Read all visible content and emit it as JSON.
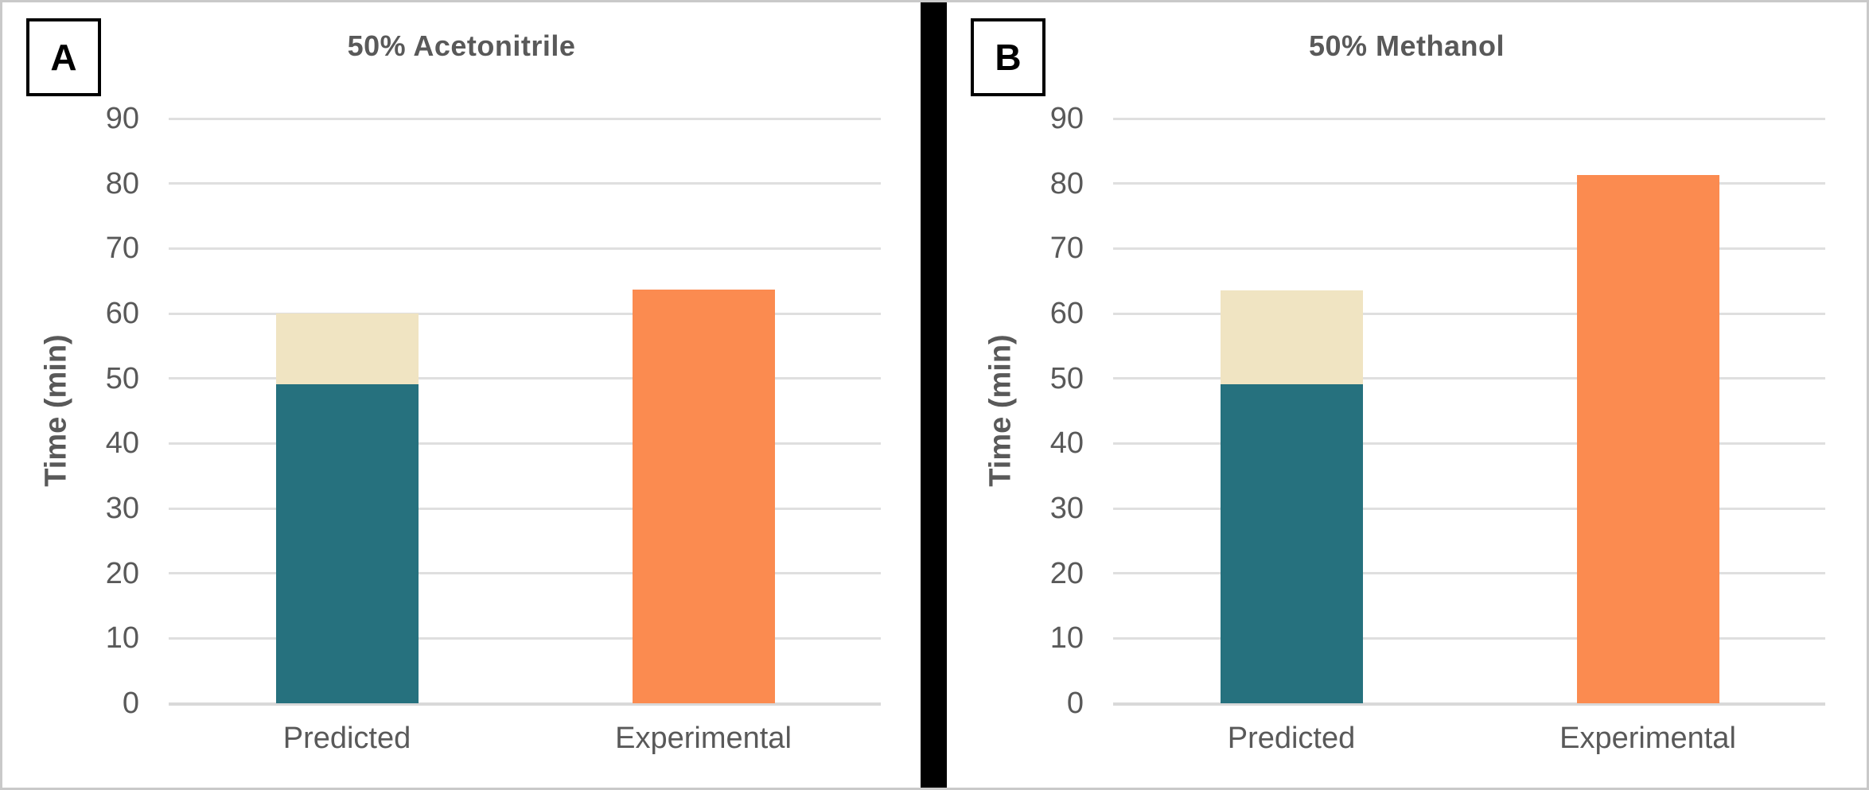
{
  "figure": {
    "background": "#FFFFFF",
    "border_color": "#C9C9C9",
    "divider_color": "#000000",
    "text_color": "#595959",
    "gridline_color": "#DFDFDF",
    "baseline_color": "#D9D9D9",
    "panel_label_color": "#000000"
  },
  "chart_data": [
    {
      "type": "bar",
      "panel_label": "A",
      "title": "50% Acetonitrile",
      "ylabel": "Time (min)",
      "xlabel": "",
      "ylim": [
        0,
        90
      ],
      "yticks": [
        0,
        10,
        20,
        30,
        40,
        50,
        60,
        70,
        80,
        90
      ],
      "grid": true,
      "legend": "none",
      "categories": [
        "Predicted",
        "Experimental"
      ],
      "bars": [
        {
          "category": "Predicted",
          "total": 60.0,
          "stacked_segments": [
            {
              "name": "predicted-lower-segment",
              "value": 49.1,
              "color": "#26717E"
            },
            {
              "name": "predicted-upper-segment",
              "value": 10.9,
              "color": "#F0E4C2"
            }
          ]
        },
        {
          "category": "Experimental",
          "total": 63.7,
          "stacked_segments": [
            {
              "name": "experimental-segment",
              "value": 63.7,
              "color": "#FB8B50"
            }
          ]
        }
      ]
    },
    {
      "type": "bar",
      "panel_label": "B",
      "title": "50% Methanol",
      "ylabel": "Time (min)",
      "xlabel": "",
      "ylim": [
        0,
        90
      ],
      "yticks": [
        0,
        10,
        20,
        30,
        40,
        50,
        60,
        70,
        80,
        90
      ],
      "grid": true,
      "legend": "none",
      "categories": [
        "Predicted",
        "Experimental"
      ],
      "bars": [
        {
          "category": "Predicted",
          "total": 63.5,
          "stacked_segments": [
            {
              "name": "predicted-lower-segment",
              "value": 49.1,
              "color": "#26717E"
            },
            {
              "name": "predicted-upper-segment",
              "value": 14.4,
              "color": "#F0E4C2"
            }
          ]
        },
        {
          "category": "Experimental",
          "total": 81.3,
          "stacked_segments": [
            {
              "name": "experimental-segment",
              "value": 81.3,
              "color": "#FB8B50"
            }
          ]
        }
      ]
    }
  ]
}
